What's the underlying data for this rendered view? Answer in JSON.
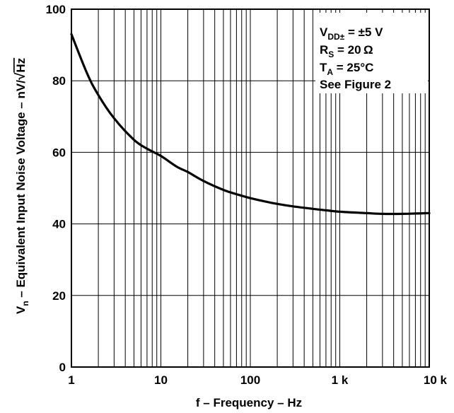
{
  "chart_data": {
    "type": "line",
    "title": "",
    "xlabel": "f – Frequency – Hz",
    "ylabel_prefix": "V",
    "ylabel_sub": "n",
    "ylabel_rest": " – Equivalent Input Noise Voltage – nV/",
    "ylabel_sqrt": "Hz",
    "x_scale": "log",
    "xlim": [
      1,
      10000
    ],
    "ylim": [
      0,
      100
    ],
    "grid": true,
    "x_ticks": [
      {
        "value": 1,
        "label": "1"
      },
      {
        "value": 10,
        "label": "10"
      },
      {
        "value": 100,
        "label": "100"
      },
      {
        "value": 1000,
        "label": "1 k"
      },
      {
        "value": 10000,
        "label": "10 k"
      }
    ],
    "y_ticks": [
      {
        "value": 0,
        "label": "0"
      },
      {
        "value": 20,
        "label": "20"
      },
      {
        "value": 40,
        "label": "40"
      },
      {
        "value": 60,
        "label": "60"
      },
      {
        "value": 80,
        "label": "80"
      },
      {
        "value": 100,
        "label": "100"
      }
    ],
    "series": [
      {
        "x": [
          1,
          1.5,
          2,
          3,
          5,
          7,
          10,
          15,
          20,
          30,
          50,
          70,
          100,
          150,
          200,
          300,
          500,
          700,
          1000,
          2000,
          3000,
          5000,
          7000,
          10000
        ],
        "y": [
          93,
          82,
          76,
          69.5,
          63.5,
          61,
          59,
          56,
          54.5,
          52,
          49.5,
          48.3,
          47.2,
          46.2,
          45.6,
          44.9,
          44.2,
          43.8,
          43.4,
          43,
          42.8,
          42.8,
          42.9,
          43
        ]
      }
    ],
    "legend_position": "top-right",
    "conditions": {
      "line1_main": "V",
      "line1_sub": "DD±",
      "line1_rest": " = ±5 V",
      "line2_main": "R",
      "line2_sub": "S",
      "line2_rest": " = 20 Ω",
      "line3_main": "T",
      "line3_sub": "A",
      "line3_rest": " = 25°C",
      "line4": "See Figure 2"
    }
  }
}
